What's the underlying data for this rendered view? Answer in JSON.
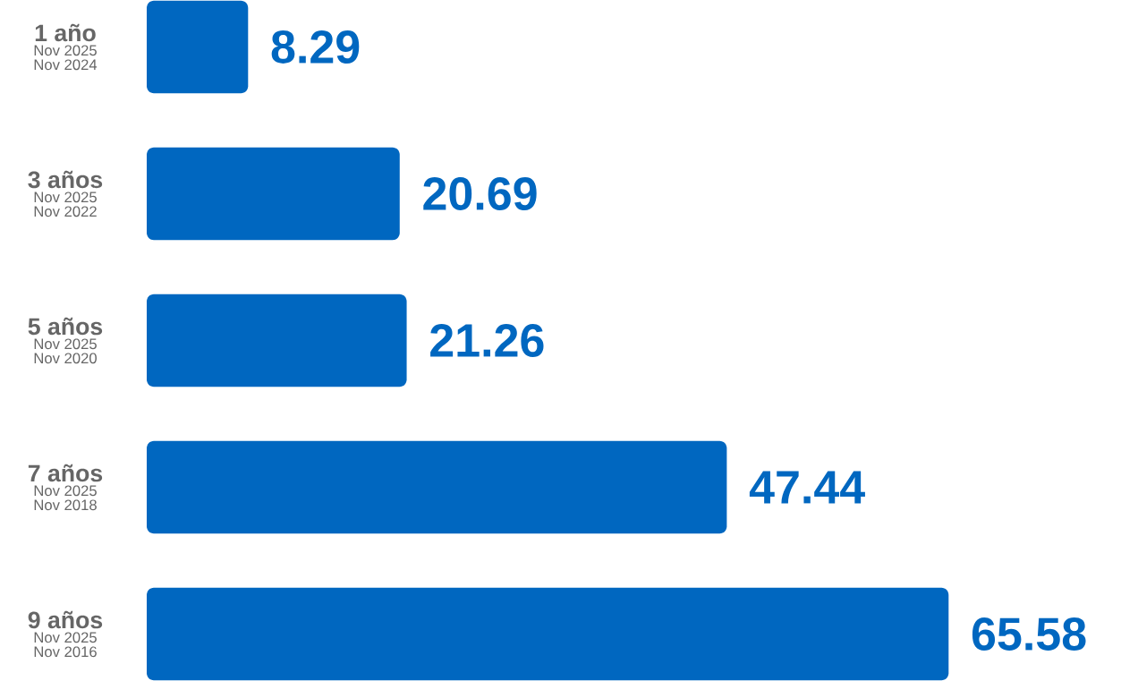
{
  "chart_data": {
    "type": "bar",
    "orientation": "horizontal",
    "categories": [
      "1 año",
      "3 años",
      "5 años",
      "7 años",
      "9 años"
    ],
    "values": [
      8.29,
      20.69,
      21.26,
      47.44,
      65.58
    ],
    "color": "#0067c0",
    "data_labels": true,
    "tick_labels": "y",
    "annotations": [
      "Nov 2025",
      "Nov 2024",
      "Nov 2025",
      "Nov 2022",
      "Nov 2025",
      "Nov 2020",
      "Nov 2025",
      "Nov 2018",
      "Nov 2025",
      "Nov 2016"
    ]
  }
}
